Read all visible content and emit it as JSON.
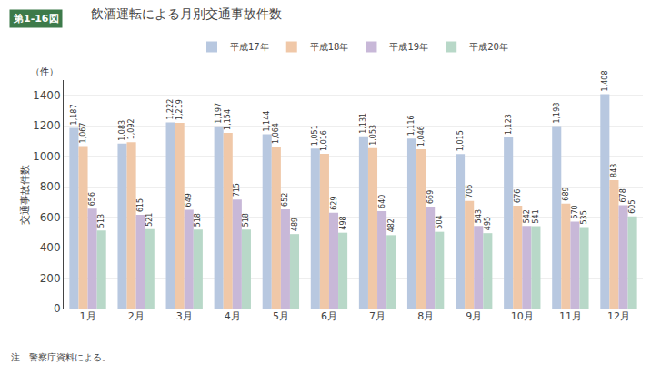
{
  "chart_data": {
    "type": "bar",
    "title": "飲酒運転による月別交通事故件数",
    "ylabel": "交通事故件数",
    "annotations": [
      "第1-16図",
      "（件）",
      "注　警察庁資料による。"
    ],
    "categories": [
      "1月",
      "2月",
      "3月",
      "4月",
      "5月",
      "6月",
      "7月",
      "8月",
      "9月",
      "10月",
      "11月",
      "12月"
    ],
    "series": [
      {
        "name": "平成17年",
        "color": "#b8c8e0",
        "values": [
          1187,
          1083,
          1222,
          1197,
          1144,
          1051,
          1131,
          1116,
          1015,
          1123,
          1198,
          1408
        ],
        "value_labels": [
          "1,187",
          "1,083",
          "1,222",
          "1,197",
          "1,144",
          "1,051",
          "1,131",
          "1,116",
          "1,015",
          "1,123",
          "1,198",
          "1,408"
        ]
      },
      {
        "name": "平成18年",
        "color": "#f0c8a8",
        "values": [
          1067,
          1092,
          1219,
          1154,
          1064,
          1016,
          1053,
          1046,
          706,
          676,
          689,
          843
        ],
        "value_labels": [
          "1,067",
          "1,092",
          "1,219",
          "1,154",
          "1,064",
          "1,016",
          "1,053",
          "1,046",
          "706",
          "676",
          "689",
          "843"
        ]
      },
      {
        "name": "平成19年",
        "color": "#c8b8d8",
        "values": [
          656,
          615,
          649,
          715,
          652,
          629,
          640,
          669,
          543,
          542,
          570,
          678
        ],
        "value_labels": [
          "656",
          "615",
          "649",
          "715",
          "652",
          "629",
          "640",
          "669",
          "543",
          "542",
          "570",
          "678"
        ]
      },
      {
        "name": "平成20年",
        "color": "#b8d8c8",
        "values": [
          513,
          521,
          518,
          518,
          489,
          498,
          482,
          504,
          495,
          541,
          535,
          605
        ],
        "value_labels": [
          "513",
          "521",
          "518",
          "518",
          "489",
          "498",
          "482",
          "504",
          "495",
          "541",
          "535",
          "605"
        ]
      }
    ],
    "ylim": [
      0,
      1500
    ],
    "yticks": [
      0,
      200,
      400,
      600,
      800,
      1000,
      1200,
      1400
    ],
    "grid": true,
    "legend": "top",
    "data_labels": true
  }
}
